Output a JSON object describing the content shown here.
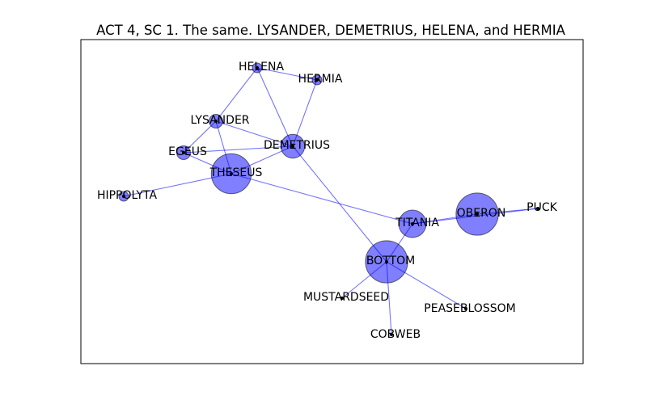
{
  "title": "ACT 4, SC 1. The same. LYSANDER, DEMETRIUS, HELENA, and HERMIA",
  "colors": {
    "node_fill": "#0000ff",
    "edge": "#0000ff",
    "label": "#000000"
  },
  "nodes": [
    {
      "id": "HELENA",
      "label": "HELENA",
      "weight": 1
    },
    {
      "id": "HERMIA",
      "label": "HERMIA",
      "weight": 1
    },
    {
      "id": "LYSANDER",
      "label": "LYSANDER",
      "weight": 2
    },
    {
      "id": "DEMETRIUS",
      "label": "DEMETRIUS",
      "weight": 6
    },
    {
      "id": "EGEUS",
      "label": "EGEUS",
      "weight": 2
    },
    {
      "id": "THESEUS",
      "label": "THESEUS",
      "weight": 17
    },
    {
      "id": "HIPPOLYTA",
      "label": "HIPPOLYTA",
      "weight": 1
    },
    {
      "id": "TITANIA",
      "label": "TITANIA",
      "weight": 8
    },
    {
      "id": "OBERON",
      "label": "OBERON",
      "weight": 19
    },
    {
      "id": "PUCK",
      "label": "PUCK",
      "weight": 0
    },
    {
      "id": "BOTTOM",
      "label": "BOTTOM",
      "weight": 19
    },
    {
      "id": "MUSTARDSEED",
      "label": "MUSTARDSEED",
      "weight": 0
    },
    {
      "id": "PEASEBLOSSOM",
      "label": "PEASEBLOSSOM",
      "weight": 0
    },
    {
      "id": "COBWEB",
      "label": "COBWEB",
      "weight": 0
    }
  ],
  "edges": [
    [
      "HELENA",
      "HERMIA"
    ],
    [
      "HELENA",
      "LYSANDER"
    ],
    [
      "HELENA",
      "DEMETRIUS"
    ],
    [
      "HERMIA",
      "DEMETRIUS"
    ],
    [
      "LYSANDER",
      "DEMETRIUS"
    ],
    [
      "LYSANDER",
      "EGEUS"
    ],
    [
      "LYSANDER",
      "THESEUS"
    ],
    [
      "EGEUS",
      "DEMETRIUS"
    ],
    [
      "EGEUS",
      "THESEUS"
    ],
    [
      "THESEUS",
      "DEMETRIUS"
    ],
    [
      "THESEUS",
      "HIPPOLYTA"
    ],
    [
      "THESEUS",
      "TITANIA"
    ],
    [
      "DEMETRIUS",
      "BOTTOM"
    ],
    [
      "TITANIA",
      "OBERON"
    ],
    [
      "TITANIA",
      "PUCK"
    ],
    [
      "TITANIA",
      "BOTTOM"
    ],
    [
      "OBERON",
      "PUCK"
    ],
    [
      "BOTTOM",
      "MUSTARDSEED"
    ],
    [
      "BOTTOM",
      "PEASEBLOSSOM"
    ],
    [
      "BOTTOM",
      "COBWEB"
    ]
  ]
}
